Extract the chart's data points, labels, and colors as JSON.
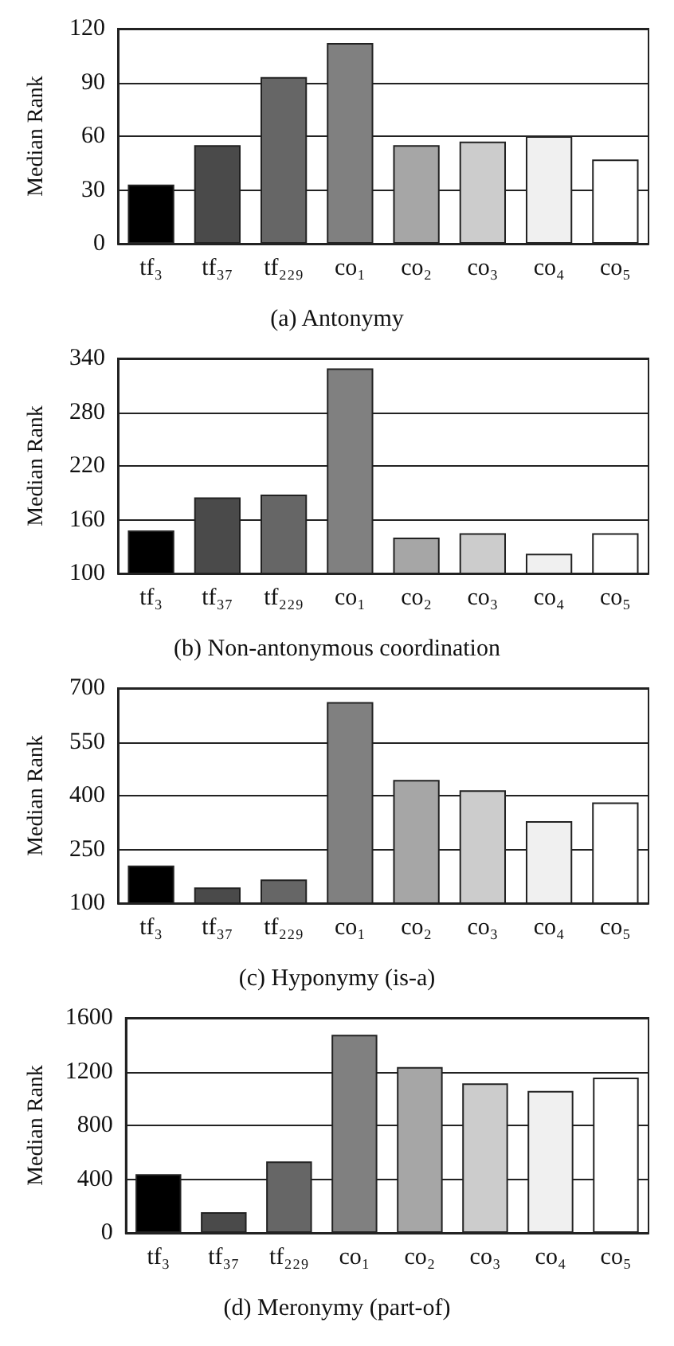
{
  "chart_data": [
    {
      "type": "bar",
      "title": "(a) Antonymy",
      "ylabel": "Median Rank",
      "categories": [
        "tf₃",
        "tf₃₇",
        "tf₂₂₉",
        "co₁",
        "co₂",
        "co₃",
        "co₄",
        "co₅"
      ],
      "values": [
        33,
        55,
        93,
        112,
        55,
        57,
        60,
        47
      ],
      "colors": [
        "#000000",
        "#4a4a4a",
        "#666666",
        "#808080",
        "#a6a6a6",
        "#cccccc",
        "#f0f0f0",
        "#ffffff"
      ],
      "ylim": [
        0,
        120
      ],
      "yticks": [
        0,
        30,
        60,
        90,
        120
      ],
      "grid": "y"
    },
    {
      "type": "bar",
      "title": "(b) Non-antonymous coordination",
      "ylabel": "Median Rank",
      "categories": [
        "tf₃",
        "tf₃₇",
        "tf₂₂₉",
        "co₁",
        "co₂",
        "co₃",
        "co₄",
        "co₅"
      ],
      "values": [
        148,
        185,
        188,
        329,
        140,
        145,
        122,
        145
      ],
      "colors": [
        "#000000",
        "#4a4a4a",
        "#666666",
        "#808080",
        "#a6a6a6",
        "#cccccc",
        "#f0f0f0",
        "#ffffff"
      ],
      "ylim": [
        100,
        340
      ],
      "yticks": [
        100,
        160,
        220,
        280,
        340
      ],
      "grid": "y"
    },
    {
      "type": "bar",
      "title": "(c) Hyponymy (is-a)",
      "ylabel": "Median Rank",
      "categories": [
        "tf₃",
        "tf₃₇",
        "tf₂₂₉",
        "co₁",
        "co₂",
        "co₃",
        "co₄",
        "co₅"
      ],
      "values": [
        205,
        144,
        166,
        661,
        444,
        415,
        329,
        381
      ],
      "colors": [
        "#000000",
        "#4a4a4a",
        "#666666",
        "#808080",
        "#a6a6a6",
        "#cccccc",
        "#f0f0f0",
        "#ffffff"
      ],
      "ylim": [
        100,
        700
      ],
      "yticks": [
        100,
        250,
        400,
        550,
        700
      ],
      "grid": "y"
    },
    {
      "type": "bar",
      "title": "(d) Meronymy (part-of)",
      "ylabel": "Median Rank",
      "categories": [
        "tf₃",
        "tf₃₇",
        "tf₂₂₉",
        "co₁",
        "co₂",
        "co₃",
        "co₄",
        "co₅"
      ],
      "values": [
        437,
        154,
        532,
        1474,
        1234,
        1112,
        1056,
        1155
      ],
      "colors": [
        "#000000",
        "#4a4a4a",
        "#666666",
        "#808080",
        "#a6a6a6",
        "#cccccc",
        "#f0f0f0",
        "#ffffff"
      ],
      "ylim": [
        0,
        1600
      ],
      "yticks": [
        0,
        400,
        800,
        1200,
        1600
      ],
      "grid": "y"
    }
  ]
}
